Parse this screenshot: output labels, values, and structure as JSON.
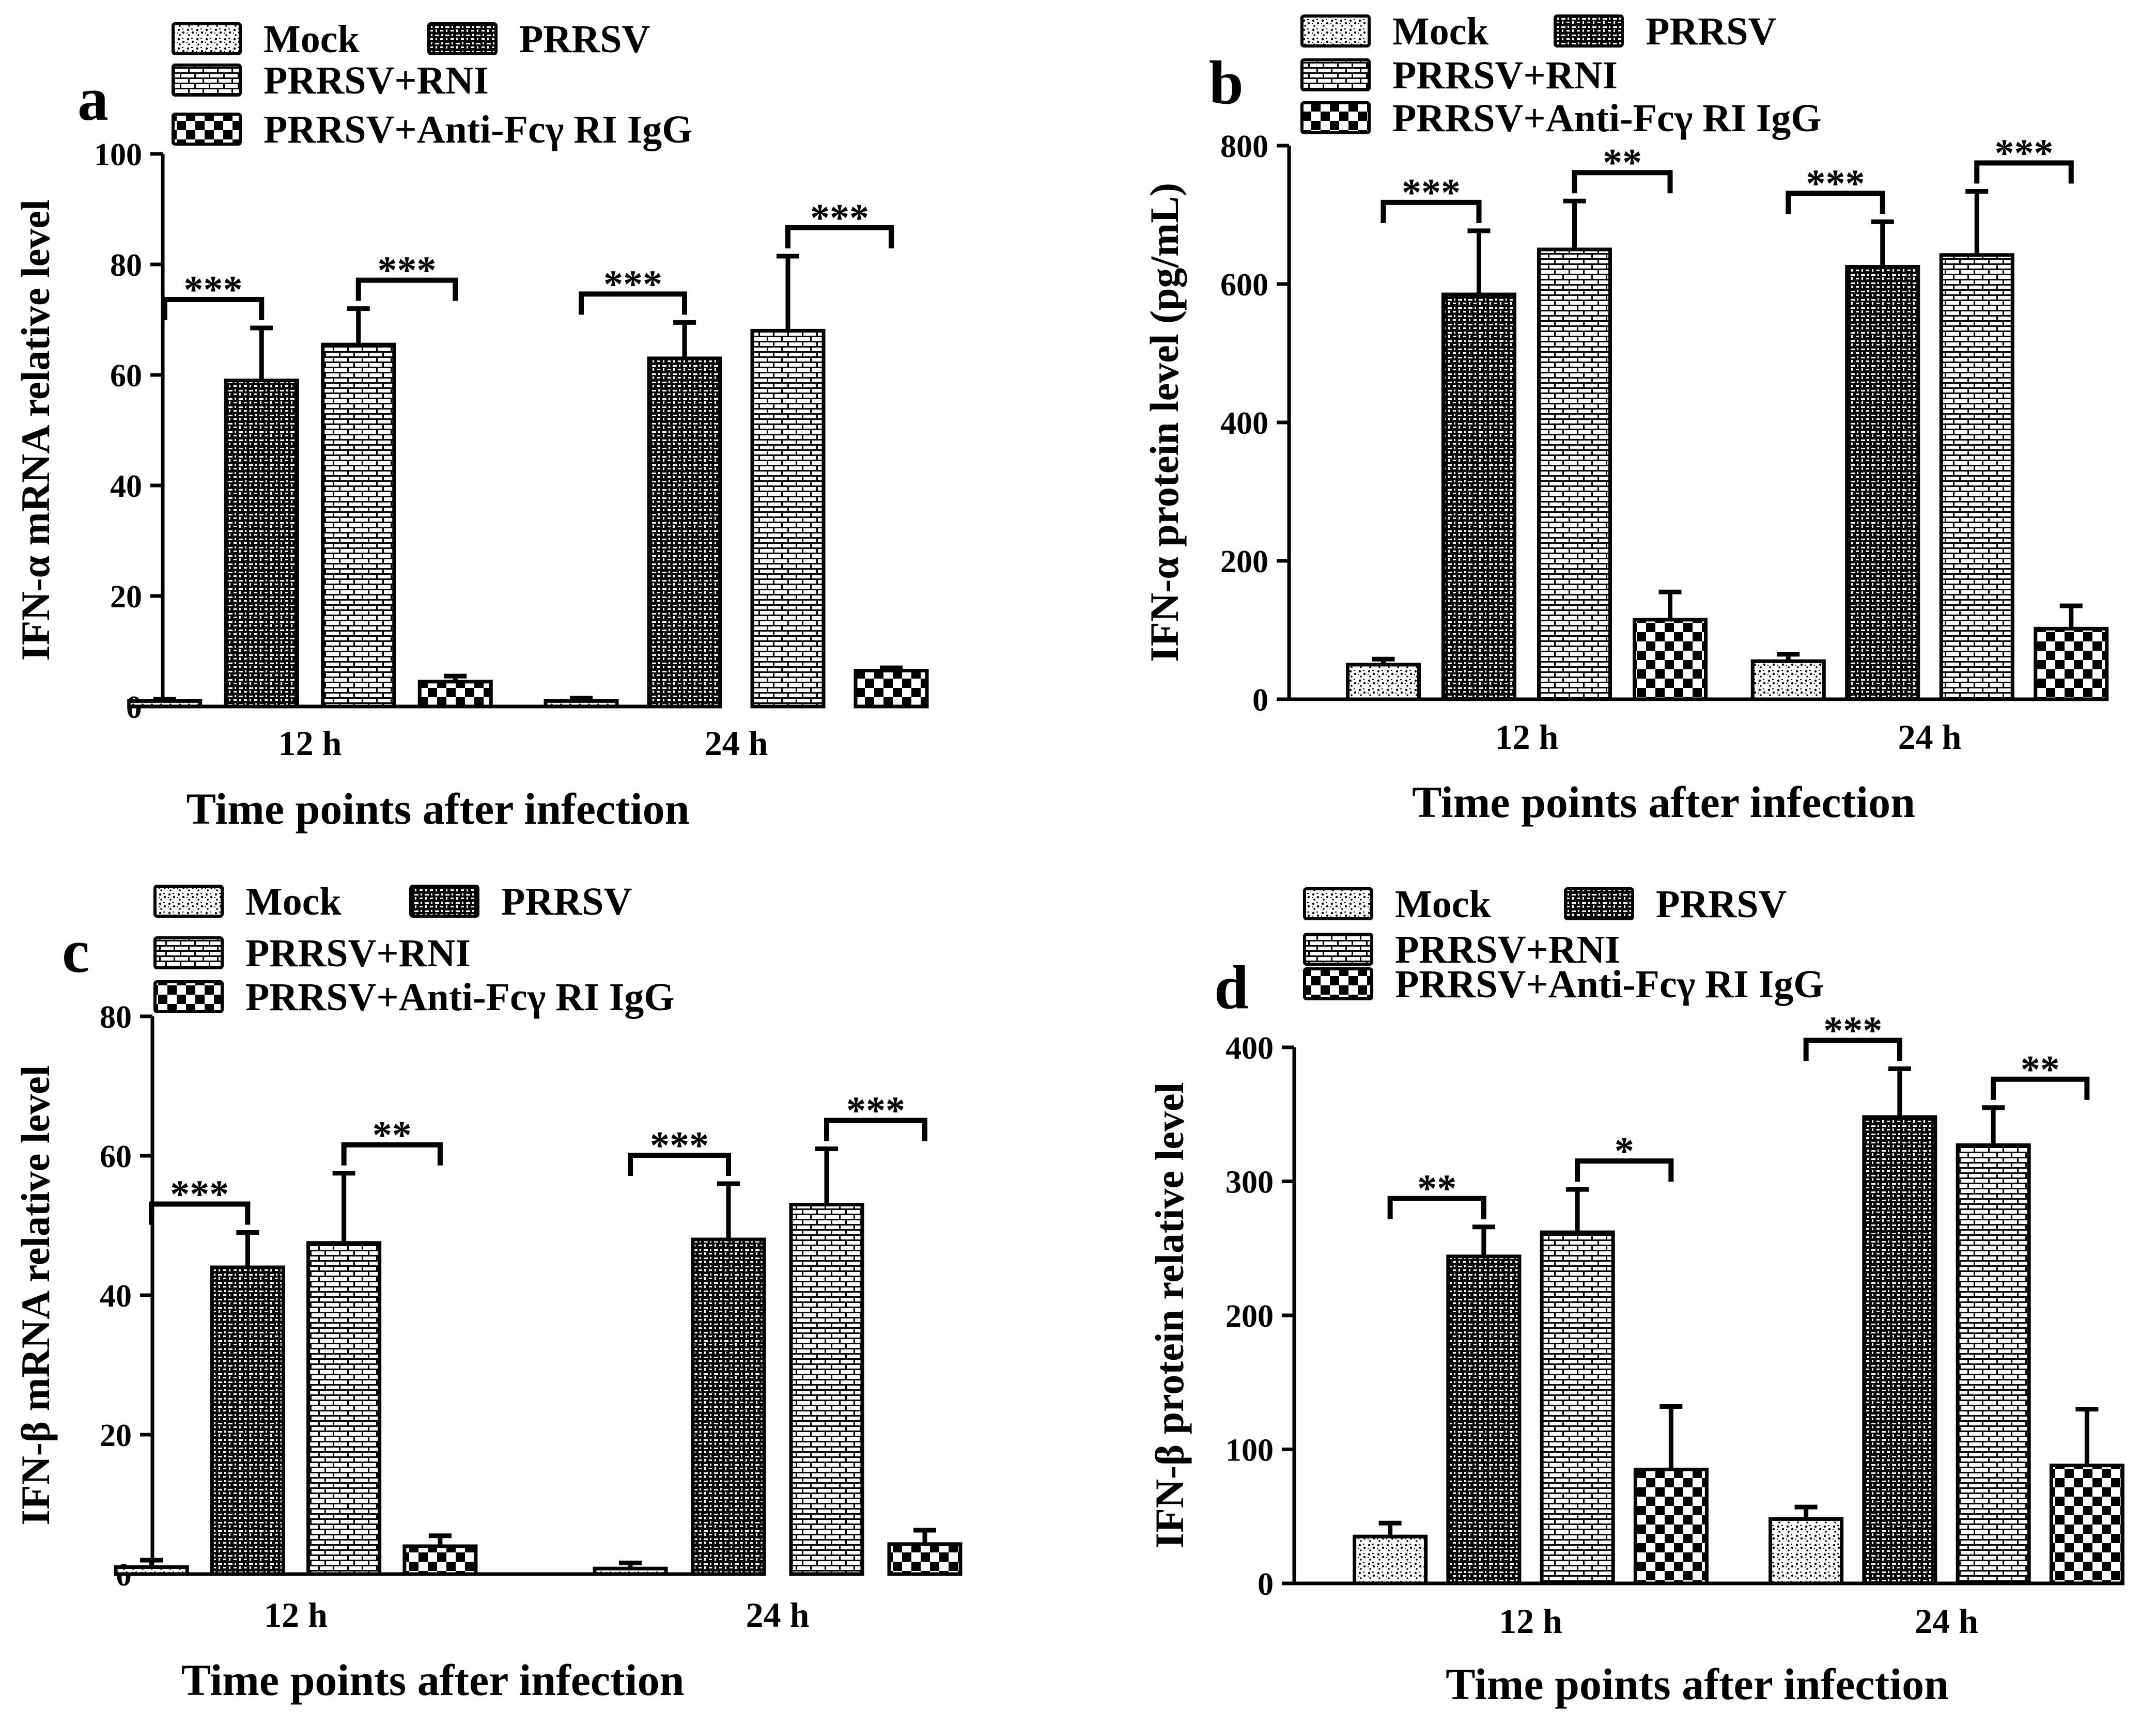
{
  "legend_items": [
    "Mock",
    "PRRSV",
    "PRRSV+RNI",
    "PRRSV+Anti-Fcγ  RI IgG"
  ],
  "chart_data": [
    {
      "panel": "a",
      "type": "bar",
      "xlabel": "Time points after infection",
      "ylabel": "IFN-α mRNA relative level",
      "categories": [
        "12 h",
        "24 h"
      ],
      "ylim": [
        0,
        100
      ],
      "yticks": [
        0,
        20,
        40,
        60,
        80,
        100
      ],
      "series": [
        {
          "name": "Mock",
          "values": [
            1,
            1
          ],
          "errors": [
            0.3,
            0.5
          ]
        },
        {
          "name": "PRRSV",
          "values": [
            59,
            63
          ],
          "errors": [
            9.5,
            6.5
          ]
        },
        {
          "name": "PRRSV+RNI",
          "values": [
            65.5,
            68
          ],
          "errors": [
            6.5,
            13.5
          ]
        },
        {
          "name": "PRRSV+Anti-Fcγ  RI IgG",
          "values": [
            4.5,
            6.5
          ],
          "errors": [
            1,
            0.5
          ]
        }
      ],
      "significance": [
        {
          "category": 0,
          "from": 1,
          "to": 0,
          "label": "***"
        },
        {
          "category": 0,
          "from": 2,
          "to": 3,
          "label": "***"
        },
        {
          "category": 1,
          "from": 1,
          "to": 0,
          "label": "***"
        },
        {
          "category": 1,
          "from": 2,
          "to": 3,
          "label": "***"
        }
      ]
    },
    {
      "panel": "b",
      "type": "bar",
      "xlabel": "Time points after infection",
      "ylabel": "IFN-α protein level (pg/mL)",
      "categories": [
        "12 h",
        "24 h"
      ],
      "ylim": [
        0,
        800
      ],
      "yticks": [
        0,
        200,
        400,
        600,
        800
      ],
      "series": [
        {
          "name": "Mock",
          "values": [
            50,
            55
          ],
          "errors": [
            8,
            10
          ]
        },
        {
          "name": "PRRSV",
          "values": [
            585,
            625
          ],
          "errors": [
            92,
            65
          ]
        },
        {
          "name": "PRRSV+RNI",
          "values": [
            650,
            642
          ],
          "errors": [
            70,
            92
          ]
        },
        {
          "name": "PRRSV+Anti-Fcγ  RI IgG",
          "values": [
            115,
            102
          ],
          "errors": [
            40,
            33
          ]
        }
      ],
      "significance": [
        {
          "category": 0,
          "from": 1,
          "to": 0,
          "label": "***"
        },
        {
          "category": 0,
          "from": 2,
          "to": 3,
          "label": "**"
        },
        {
          "category": 1,
          "from": 1,
          "to": 0,
          "label": "***"
        },
        {
          "category": 1,
          "from": 2,
          "to": 3,
          "label": "***"
        }
      ]
    },
    {
      "panel": "c",
      "type": "bar",
      "xlabel": "Time points after infection",
      "ylabel": "IFN-β mRNA relative level",
      "categories": [
        "12 h",
        "24 h"
      ],
      "ylim": [
        0,
        80
      ],
      "yticks": [
        0,
        20,
        40,
        60,
        80
      ],
      "series": [
        {
          "name": "Mock",
          "values": [
            1,
            0.8
          ],
          "errors": [
            1,
            0.8
          ]
        },
        {
          "name": "PRRSV",
          "values": [
            44,
            48
          ],
          "errors": [
            5,
            8
          ]
        },
        {
          "name": "PRRSV+RNI",
          "values": [
            47.5,
            53
          ],
          "errors": [
            10,
            8
          ]
        },
        {
          "name": "PRRSV+Anti-Fcγ  RI IgG",
          "values": [
            4,
            4.3
          ],
          "errors": [
            1.5,
            2
          ]
        }
      ],
      "significance": [
        {
          "category": 0,
          "from": 1,
          "to": 0,
          "label": "***"
        },
        {
          "category": 0,
          "from": 2,
          "to": 3,
          "label": "**"
        },
        {
          "category": 1,
          "from": 1,
          "to": 0,
          "label": "***"
        },
        {
          "category": 1,
          "from": 2,
          "to": 3,
          "label": "***"
        }
      ]
    },
    {
      "panel": "d",
      "type": "bar",
      "xlabel": "Time points after infection",
      "ylabel": "IFN-β protein relative level",
      "categories": [
        "12 h",
        "24 h"
      ],
      "ylim": [
        0,
        400
      ],
      "yticks": [
        0,
        100,
        200,
        300,
        400
      ],
      "series": [
        {
          "name": "Mock",
          "values": [
            35,
            48
          ],
          "errors": [
            10,
            9
          ]
        },
        {
          "name": "PRRSV",
          "values": [
            244,
            348
          ],
          "errors": [
            22,
            36
          ]
        },
        {
          "name": "PRRSV+RNI",
          "values": [
            262,
            327
          ],
          "errors": [
            32,
            28
          ]
        },
        {
          "name": "PRRSV+Anti-Fcγ  RI IgG",
          "values": [
            85,
            88
          ],
          "errors": [
            47,
            42
          ]
        }
      ],
      "significance": [
        {
          "category": 0,
          "from": 1,
          "to": 0,
          "label": "**"
        },
        {
          "category": 0,
          "from": 2,
          "to": 3,
          "label": "*"
        },
        {
          "category": 1,
          "from": 1,
          "to": 0,
          "label": "***"
        },
        {
          "category": 1,
          "from": 2,
          "to": 3,
          "label": "**"
        }
      ]
    }
  ]
}
